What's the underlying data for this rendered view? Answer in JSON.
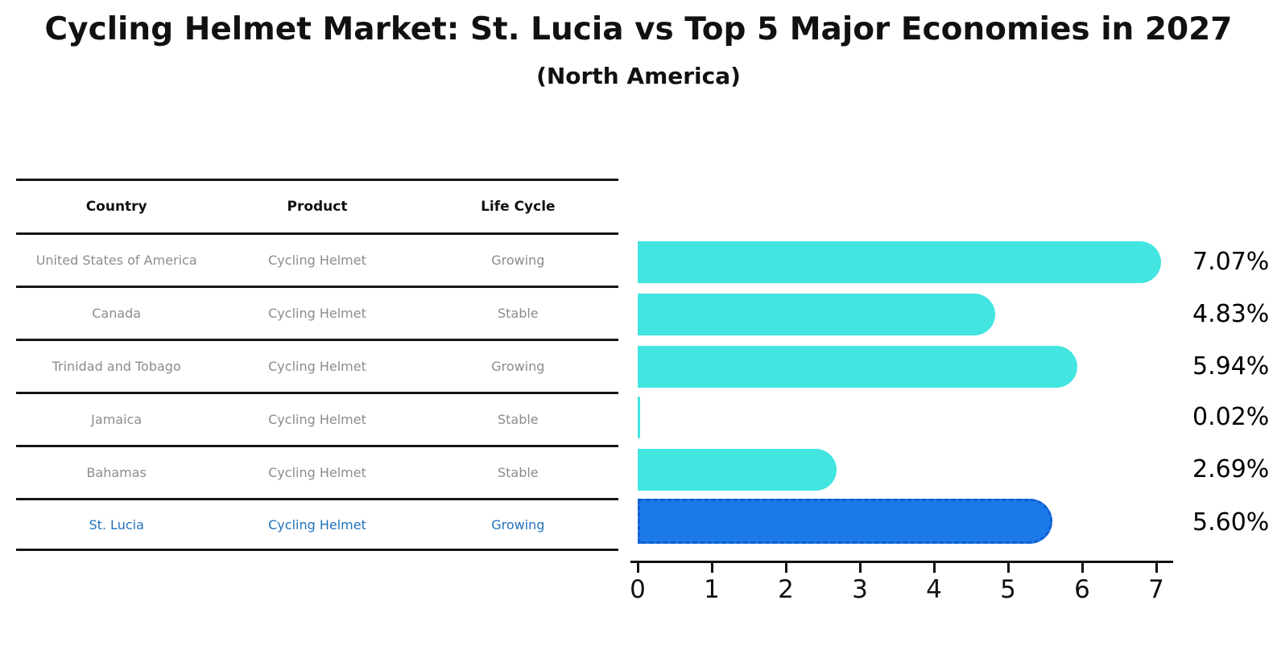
{
  "title": "Cycling Helmet Market: St. Lucia vs Top 5 Major Economies in 2027",
  "subtitle": "(North America)",
  "table": {
    "headers": [
      "Country",
      "Product",
      "Life Cycle"
    ],
    "rows": [
      {
        "country": "United States of America",
        "product": "Cycling Helmet",
        "life_cycle": "Growing"
      },
      {
        "country": "Canada",
        "product": "Cycling Helmet",
        "life_cycle": "Stable"
      },
      {
        "country": "Trinidad and Tobago",
        "product": "Cycling Helmet",
        "life_cycle": "Growing"
      },
      {
        "country": "Jamaica",
        "product": "Cycling Helmet",
        "life_cycle": "Stable"
      },
      {
        "country": "Bahamas",
        "product": "Cycling Helmet",
        "life_cycle": "Stable"
      },
      {
        "country": "St. Lucia",
        "product": "Cycling Helmet",
        "life_cycle": "Growing"
      }
    ],
    "highlight_row_index": 5
  },
  "chart_data": {
    "type": "bar",
    "orientation": "horizontal",
    "title": "Cycling Helmet Market: St. Lucia vs Top 5 Major Economies in 2027 (North America)",
    "categories": [
      "United States of America",
      "Canada",
      "Trinidad and Tobago",
      "Jamaica",
      "Bahamas",
      "St. Lucia"
    ],
    "values": [
      7.07,
      4.83,
      5.94,
      0.02,
      2.69,
      5.6
    ],
    "value_labels": [
      "7.07%",
      "4.83%",
      "5.94%",
      "0.02%",
      "2.69%",
      "5.60%"
    ],
    "unit": "percent",
    "xlabel": "",
    "ylabel": "",
    "xticks": [
      0,
      1,
      2,
      3,
      4,
      5,
      6,
      7
    ],
    "xtick_labels": [
      "0",
      "1",
      "2",
      "3",
      "4",
      "5",
      "6",
      "7"
    ],
    "xlim": [
      0,
      7.33
    ],
    "grid": false,
    "legend": false,
    "highlight_index": 5,
    "bar_color": "#42e5e0",
    "highlight_bar_color": "#1b7ae8",
    "highlight_border_color": "#0f5ed2",
    "highlight_text_color": "#2273bc",
    "value_label_color": "#000000",
    "axis_color": "#111111"
  }
}
